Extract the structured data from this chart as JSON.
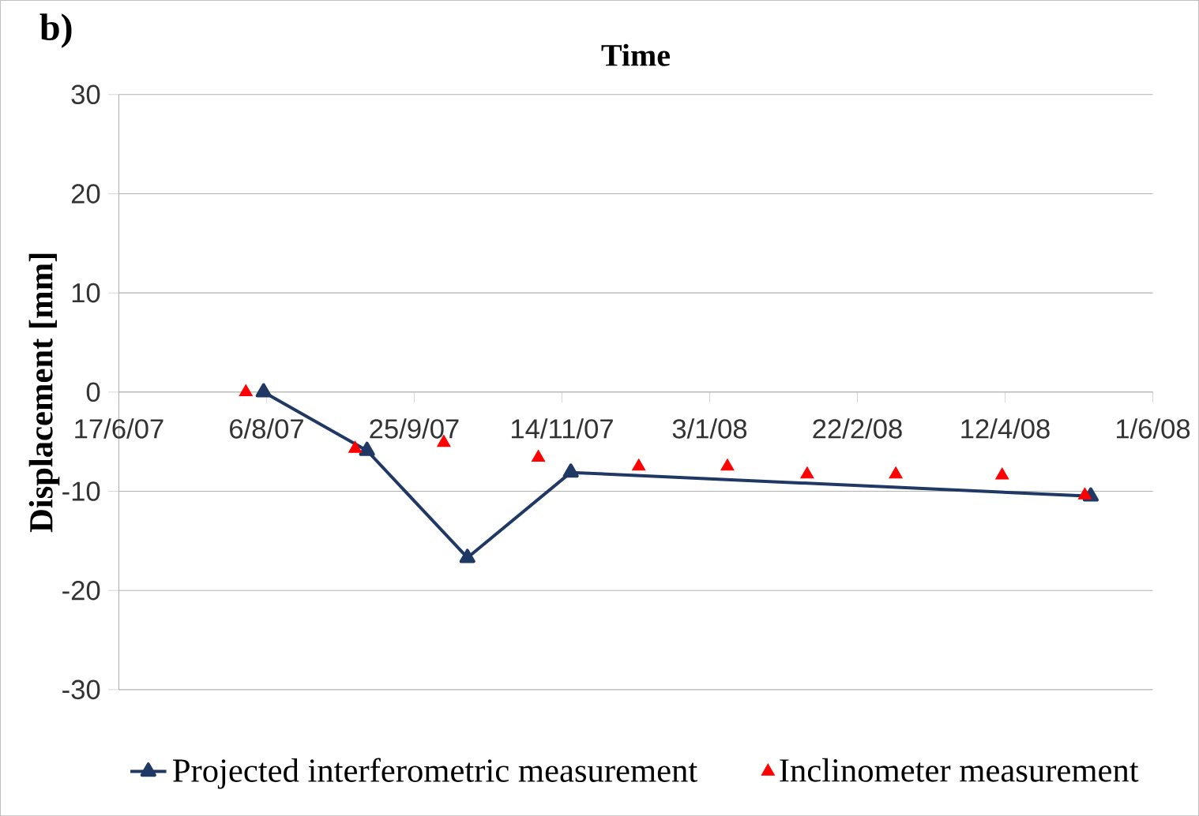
{
  "chart_data": {
    "type": "line",
    "xlabel": "Time",
    "ylabel": "Displacement [mm]",
    "annotations": [
      "b)"
    ],
    "xlim": [
      "2007-06-17",
      "2008-06-01"
    ],
    "xticks": [
      {
        "value": "2007-06-17",
        "label": "17/6/07"
      },
      {
        "value": "2007-08-06",
        "label": "6/8/07"
      },
      {
        "value": "2007-09-25",
        "label": "25/9/07"
      },
      {
        "value": "2007-11-14",
        "label": "14/11/07"
      },
      {
        "value": "2008-01-03",
        "label": "3/1/08"
      },
      {
        "value": "2008-02-22",
        "label": "22/2/08"
      },
      {
        "value": "2008-04-12",
        "label": "12/4/08"
      },
      {
        "value": "2008-06-01",
        "label": "1/6/08"
      }
    ],
    "ylim": [
      -30,
      30
    ],
    "yticks": [
      -30,
      -20,
      -10,
      0,
      10,
      20,
      30
    ],
    "grid": "y",
    "legend": "bottom",
    "marker": "triangle",
    "series": [
      {
        "name": "Projected interferometric measurement",
        "color": "#1f3864",
        "line_style": "solid",
        "x": [
          "2007-08-05",
          "2007-09-09",
          "2007-10-13",
          "2007-11-17",
          "2008-05-11"
        ],
        "values": [
          0,
          -5.9,
          -16.7,
          -8.1,
          -10.5
        ]
      },
      {
        "name": "Inclinometer measurement",
        "type": "scatter",
        "color": "#ff0000",
        "x": [
          "2007-07-30",
          "2007-09-05",
          "2007-10-05",
          "2007-11-06",
          "2007-12-10",
          "2008-01-09",
          "2008-02-05",
          "2008-03-06",
          "2008-04-11",
          "2008-05-09"
        ],
        "values": [
          0,
          -5.7,
          -5.1,
          -6.6,
          -7.5,
          -7.5,
          -8.3,
          -8.3,
          -8.4,
          -10.4
        ]
      }
    ]
  }
}
